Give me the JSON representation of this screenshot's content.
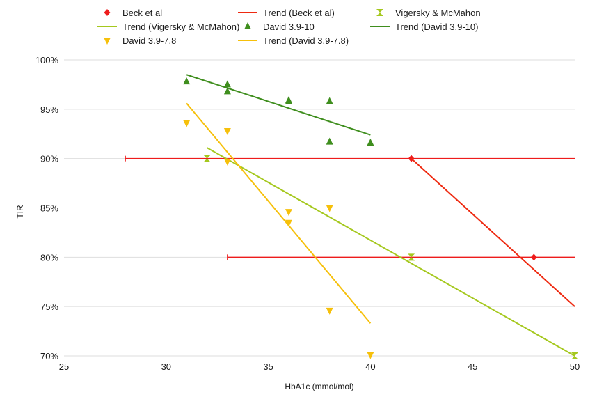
{
  "chart_data": {
    "type": "scatter",
    "xlabel": "HbA1c (mmol/mol)",
    "ylabel": "TIR",
    "xlim": [
      25,
      50
    ],
    "ylim": [
      70,
      100
    ],
    "x_ticks": [
      25,
      30,
      35,
      40,
      45,
      50
    ],
    "y_ticks": [
      70,
      75,
      80,
      85,
      90,
      95,
      100
    ],
    "y_tick_labels": [
      "70%",
      "75%",
      "80%",
      "85%",
      "90%",
      "95%",
      "100%"
    ],
    "grid": "horizontal",
    "legend_position": "top",
    "series": [
      {
        "name": "Beck et al",
        "kind": "scatter",
        "marker": "diamond",
        "color": "#ee1c1c",
        "points": [
          {
            "x": 42,
            "y": 90
          },
          {
            "x": 48,
            "y": 80
          }
        ],
        "error_bars": [
          {
            "y": 90,
            "xmin": 28,
            "xmax": 50
          },
          {
            "y": 80,
            "xmin": 33,
            "xmax": 50
          }
        ]
      },
      {
        "name": "Trend (Beck et al)",
        "kind": "line",
        "color": "#ee2a11",
        "points": [
          {
            "x": 42,
            "y": 90
          },
          {
            "x": 50,
            "y": 75
          }
        ]
      },
      {
        "name": "Vigersky & McMahon",
        "kind": "scatter",
        "marker": "hourglass",
        "color": "#a5c81e",
        "points": [
          {
            "x": 32,
            "y": 90
          },
          {
            "x": 42,
            "y": 80
          },
          {
            "x": 50,
            "y": 70
          }
        ]
      },
      {
        "name": "Trend (Vigersky & McMahon)",
        "kind": "line",
        "color": "#a5c81e",
        "points": [
          {
            "x": 32,
            "y": 91.1
          },
          {
            "x": 50,
            "y": 70
          }
        ]
      },
      {
        "name": "David 3.9-10",
        "kind": "scatter",
        "marker": "triangle-up",
        "color": "#3f8e1e",
        "points": [
          {
            "x": 31,
            "y": 97.8
          },
          {
            "x": 33,
            "y": 97.5
          },
          {
            "x": 33,
            "y": 96.8
          },
          {
            "x": 36,
            "y": 95.9
          },
          {
            "x": 36,
            "y": 95.8
          },
          {
            "x": 38,
            "y": 95.8
          },
          {
            "x": 38,
            "y": 91.7
          },
          {
            "x": 40,
            "y": 91.6
          }
        ]
      },
      {
        "name": "Trend (David 3.9-10)",
        "kind": "line",
        "color": "#3f8e1e",
        "points": [
          {
            "x": 31,
            "y": 98.5
          },
          {
            "x": 40,
            "y": 92.4
          }
        ]
      },
      {
        "name": "David 3.9-7.8",
        "kind": "scatter",
        "marker": "triangle-down",
        "color": "#f6c00b",
        "points": [
          {
            "x": 31,
            "y": 93.6
          },
          {
            "x": 33,
            "y": 92.8
          },
          {
            "x": 33,
            "y": 89.7
          },
          {
            "x": 36,
            "y": 84.6
          },
          {
            "x": 36,
            "y": 83.5
          },
          {
            "x": 38,
            "y": 85.0
          },
          {
            "x": 38,
            "y": 74.6
          },
          {
            "x": 40,
            "y": 70.1
          }
        ]
      },
      {
        "name": "Trend (David 3.9-7.8)",
        "kind": "line",
        "color": "#f6c00b",
        "points": [
          {
            "x": 31,
            "y": 95.6
          },
          {
            "x": 40,
            "y": 73.3
          }
        ]
      }
    ]
  }
}
